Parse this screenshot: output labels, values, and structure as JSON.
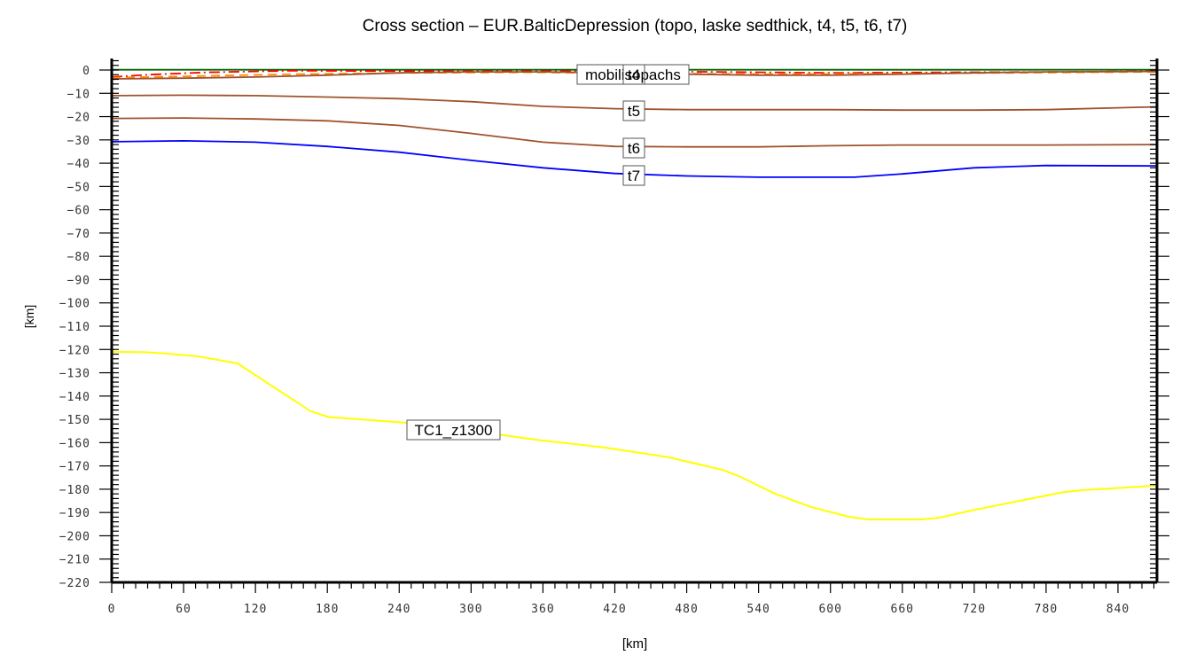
{
  "chart_data": {
    "type": "line",
    "title": "Cross section – EUR.BalticDepression (topo, laske sedthick, t4, t5, t6, t7)",
    "xlabel": "[km]",
    "ylabel": "[km]",
    "xlim": [
      0,
      873
    ],
    "ylim": [
      -220,
      5
    ],
    "x_ticks": [
      0,
      60,
      120,
      180,
      240,
      300,
      360,
      420,
      480,
      540,
      600,
      660,
      720,
      780,
      840
    ],
    "x_minor_step": 10,
    "y_ticks": [
      0,
      -10,
      -20,
      -30,
      -40,
      -50,
      -60,
      -70,
      -80,
      -90,
      -100,
      -110,
      -120,
      -130,
      -140,
      -150,
      -160,
      -170,
      -180,
      -190,
      -200,
      -210,
      -220
    ],
    "y_minor_step": 2,
    "grid": false,
    "legend": "inline labels",
    "series": [
      {
        "name": "topo",
        "color": "#006400",
        "style": "solid",
        "x": [
          0,
          200,
          400,
          600,
          873
        ],
        "y": [
          0.1,
          0.1,
          0.1,
          0.1,
          0.1
        ]
      },
      {
        "name": "laske sedthick",
        "color": "#ff0000",
        "style": "dashdot",
        "x": [
          0,
          30,
          80,
          150,
          250,
          400,
          500,
          600,
          700,
          800,
          873
        ],
        "y": [
          -3,
          -2,
          -1,
          -0.3,
          -0.5,
          -0.5,
          -0.8,
          -1.2,
          -1,
          -0.8,
          -0.5
        ]
      },
      {
        "name": "mobilisopachs",
        "color": "#ff8c00",
        "style": "dashed",
        "x": [
          0,
          60,
          150,
          250,
          350,
          450,
          550,
          650,
          750,
          873
        ],
        "y": [
          -3.3,
          -2.7,
          -1.8,
          -1.2,
          -1,
          -1.5,
          -1.8,
          -1.6,
          -1.2,
          -0.8
        ]
      },
      {
        "name": "t4",
        "color": "#a0522d",
        "style": "solid",
        "x": [
          0,
          60,
          120,
          180,
          240,
          300,
          360,
          420,
          480,
          540,
          600,
          660,
          720,
          780,
          873
        ],
        "y": [
          -3.8,
          -3.5,
          -3,
          -2.2,
          -1.2,
          -0.8,
          -0.8,
          -1.2,
          -1.8,
          -2.2,
          -2.2,
          -1.8,
          -1.2,
          -0.8,
          -0.6
        ]
      },
      {
        "name": "t5",
        "color": "#a0522d",
        "style": "solid",
        "x": [
          0,
          60,
          120,
          180,
          240,
          300,
          360,
          420,
          480,
          540,
          600,
          660,
          720,
          780,
          873
        ],
        "y": [
          -11,
          -10.8,
          -11,
          -11.6,
          -12.3,
          -13.6,
          -15.6,
          -16.6,
          -17,
          -17,
          -17,
          -17.2,
          -17.2,
          -17,
          -15.8
        ]
      },
      {
        "name": "t6",
        "color": "#a0522d",
        "style": "solid",
        "x": [
          0,
          60,
          120,
          180,
          240,
          300,
          360,
          420,
          480,
          540,
          600,
          660,
          720,
          780,
          873
        ],
        "y": [
          -20.8,
          -20.6,
          -21,
          -21.8,
          -23.8,
          -27.2,
          -31,
          -32.8,
          -33,
          -33,
          -32.5,
          -32.2,
          -32.2,
          -32.2,
          -32
        ]
      },
      {
        "name": "t7",
        "color": "#0000ff",
        "style": "solid",
        "x": [
          0,
          60,
          120,
          180,
          240,
          300,
          360,
          420,
          480,
          540,
          600,
          620,
          660,
          720,
          780,
          873
        ],
        "y": [
          -30.8,
          -30.4,
          -31,
          -32.8,
          -35.3,
          -38.8,
          -42,
          -44.4,
          -45.5,
          -46,
          -46,
          -46,
          -44.6,
          -42,
          -41,
          -41.2
        ]
      },
      {
        "name": "TC1_z1300",
        "color": "#ffff00",
        "style": "solid",
        "x": [
          0,
          29,
          47,
          73,
          105,
          166,
          181,
          247,
          323,
          358,
          410,
          465,
          510,
          525,
          554,
          584,
          615,
          632,
          675,
          691,
          721,
          758,
          795,
          810,
          872
        ],
        "y": [
          -121,
          -121.2,
          -121.8,
          -123,
          -126,
          -146.5,
          -149,
          -151.5,
          -156.5,
          -159,
          -162,
          -166.3,
          -171.7,
          -174.7,
          -182,
          -187.7,
          -191.8,
          -193,
          -193,
          -192.2,
          -188.8,
          -185,
          -181.2,
          -180.4,
          -178.5
        ]
      }
    ],
    "annotations": [
      {
        "text": "mobilisopachs",
        "x": 435,
        "y": -2
      },
      {
        "text": "t4",
        "x": 435,
        "y": -2
      },
      {
        "text": "t5",
        "x": 435,
        "y": -17
      },
      {
        "text": "t6",
        "x": 435,
        "y": -33
      },
      {
        "text": "t7",
        "x": 435,
        "y": -45
      },
      {
        "text": "TC1_z1300",
        "x": 286,
        "y": -154
      }
    ]
  },
  "labels": {
    "title": "Cross section – EUR.BalticDepression (topo, laske sedthick, t4, t5, t6, t7)",
    "xlabel": "[km]",
    "ylabel": "[km]"
  }
}
